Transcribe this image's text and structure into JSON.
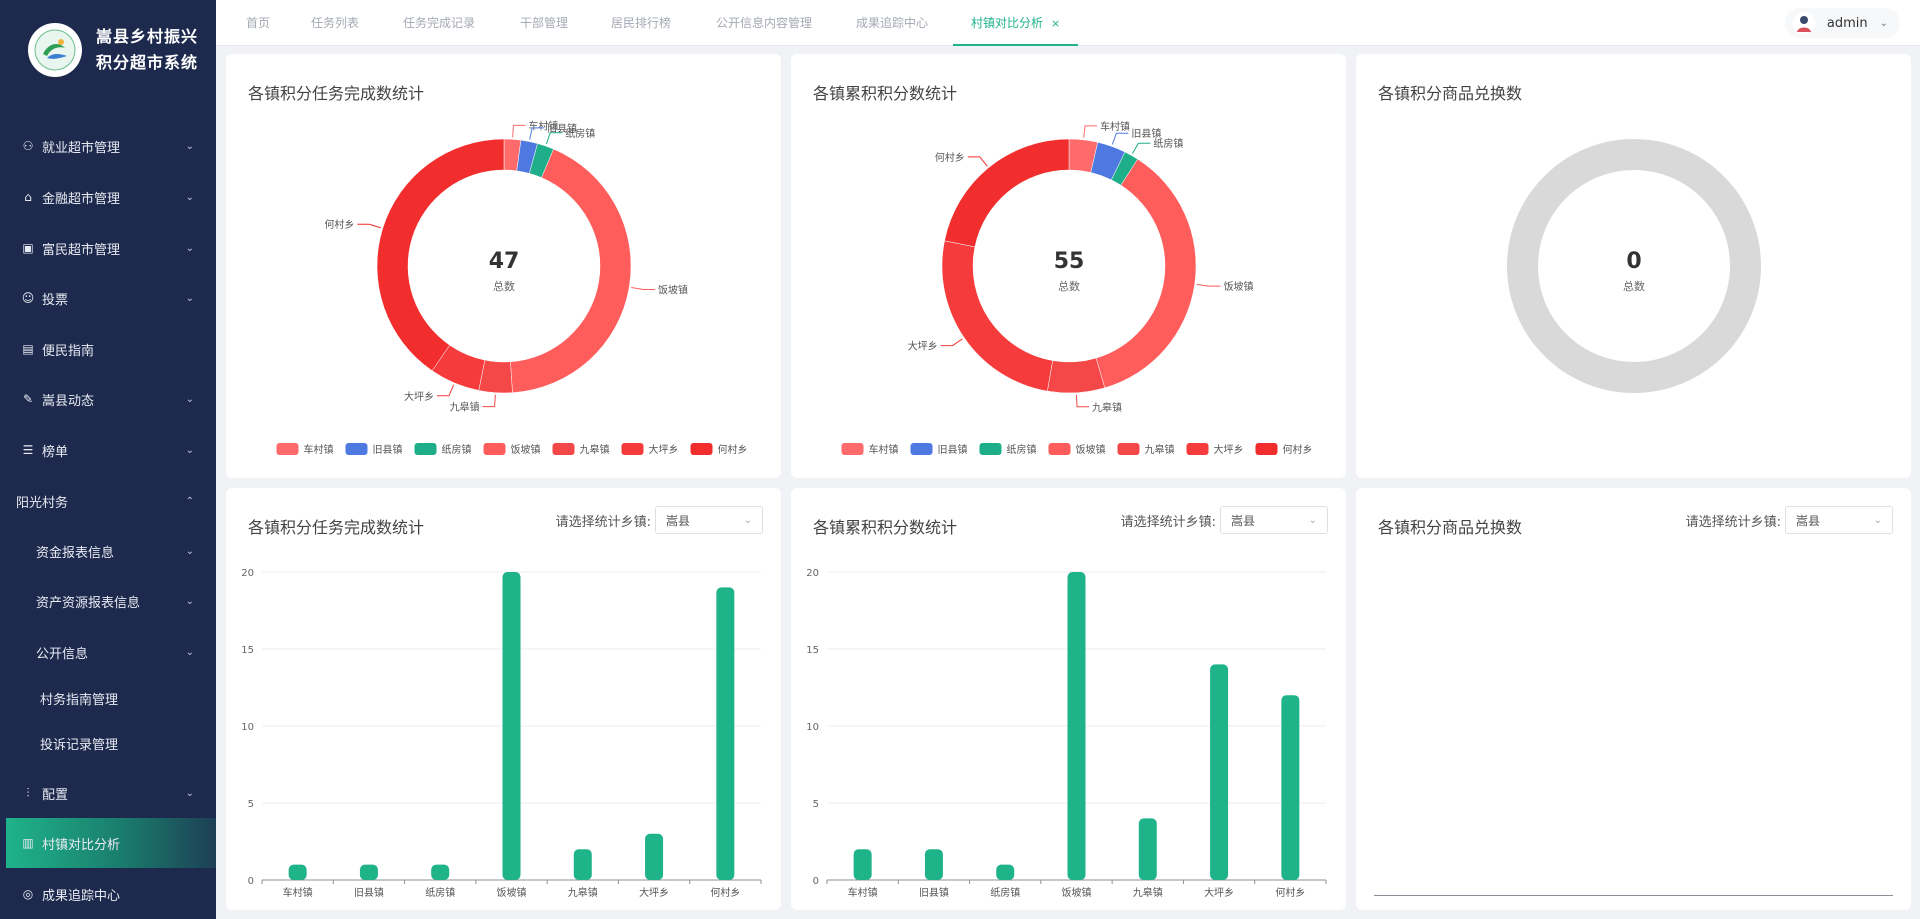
{
  "app": {
    "title_line1": "嵩县乡村振兴",
    "title_line2": "积分超市系统"
  },
  "sidebar": {
    "items": [
      {
        "label": "就业超市管理",
        "icon": "org-chart-icon",
        "arrow": "down"
      },
      {
        "label": "金融超市管理",
        "icon": "bank-icon",
        "arrow": "down"
      },
      {
        "label": "富民超市管理",
        "icon": "shop-icon",
        "arrow": "down"
      },
      {
        "label": "投票",
        "icon": "people-icon",
        "arrow": "down"
      },
      {
        "label": "便民指南",
        "icon": "document-icon",
        "arrow": ""
      },
      {
        "label": "嵩县动态",
        "icon": "pen-icon",
        "arrow": "down"
      },
      {
        "label": "榜单",
        "icon": "list-icon",
        "arrow": "down"
      },
      {
        "label": "阳光村务",
        "icon": "",
        "arrow": "up"
      },
      {
        "label": "资金报表信息",
        "icon": "",
        "arrow": "down"
      },
      {
        "label": "资产资源报表信息",
        "icon": "",
        "arrow": "down"
      },
      {
        "label": "公开信息",
        "icon": "",
        "arrow": "down"
      },
      {
        "label": "村务指南管理",
        "icon": "",
        "arrow": ""
      },
      {
        "label": "投诉记录管理",
        "icon": "",
        "arrow": ""
      },
      {
        "label": "配置",
        "icon": "sliders-icon",
        "arrow": "down"
      },
      {
        "label": "村镇对比分析",
        "icon": "bar-chart-icon",
        "arrow": ""
      },
      {
        "label": "成果追踪中心",
        "icon": "target-icon",
        "arrow": ""
      }
    ]
  },
  "tabs": [
    {
      "label": "首页"
    },
    {
      "label": "任务列表"
    },
    {
      "label": "任务完成记录"
    },
    {
      "label": "干部管理"
    },
    {
      "label": "居民排行榜"
    },
    {
      "label": "公开信息内容管理"
    },
    {
      "label": "成果追踪中心"
    },
    {
      "label": "村镇对比分析",
      "active": true,
      "close": "×"
    }
  ],
  "user": {
    "name": "admin"
  },
  "filter": {
    "label": "请选择统计乡镇:",
    "value": "嵩县"
  },
  "colors": {
    "accent": "#1fb38a",
    "sidebar_bg": "#1d2a4d",
    "bar": "#1fb38a",
    "slices": [
      "#ff6b6b",
      "#4e79e0",
      "#1fae8a",
      "#ff5c5c",
      "#f44848",
      "#f53b3b",
      "#f22d2d"
    ],
    "empty_ring": "#d9d9d9"
  },
  "cards": {
    "pie1": {
      "title": "各镇积分任务完成数统计",
      "center_label": "总数"
    },
    "pie2": {
      "title": "各镇累积积分数统计",
      "center_label": "总数"
    },
    "pie3": {
      "title": "各镇积分商品兑换数",
      "center_label": "总数"
    },
    "bar1": {
      "title": "各镇积分任务完成数统计"
    },
    "bar2": {
      "title": "各镇累积积分数统计"
    },
    "bar3": {
      "title": "各镇积分商品兑换数"
    }
  },
  "chart_data": [
    {
      "type": "pie",
      "title": "各镇积分任务完成数统计",
      "donut": true,
      "total": 47,
      "labels": [
        "车村镇",
        "旧县镇",
        "纸房镇",
        "饭坡镇",
        "九皋镇",
        "大坪乡",
        "何村乡"
      ],
      "values": [
        1,
        1,
        1,
        20,
        2,
        3,
        19
      ],
      "legend": "bottom"
    },
    {
      "type": "pie",
      "title": "各镇累积积分数统计",
      "donut": true,
      "total": 55,
      "labels": [
        "车村镇",
        "旧县镇",
        "纸房镇",
        "饭坡镇",
        "九皋镇",
        "大坪乡",
        "何村乡"
      ],
      "values": [
        2,
        2,
        1,
        20,
        4,
        14,
        12
      ],
      "legend": "bottom"
    },
    {
      "type": "pie",
      "title": "各镇积分商品兑换数",
      "donut": true,
      "total": 0,
      "labels": [],
      "values": []
    },
    {
      "type": "bar",
      "title": "各镇积分任务完成数统计",
      "categories": [
        "车村镇",
        "旧县镇",
        "纸房镇",
        "饭坡镇",
        "九皋镇",
        "大坪乡",
        "何村乡"
      ],
      "values": [
        1,
        1,
        1,
        20,
        2,
        3,
        19
      ],
      "ylim": [
        0,
        20
      ],
      "yticks": [
        0,
        5,
        10,
        15,
        20
      ],
      "grid": true
    },
    {
      "type": "bar",
      "title": "各镇累积积分数统计",
      "categories": [
        "车村镇",
        "旧县镇",
        "纸房镇",
        "饭坡镇",
        "九皋镇",
        "大坪乡",
        "何村乡"
      ],
      "values": [
        2,
        2,
        1,
        20,
        4,
        14,
        12
      ],
      "ylim": [
        0,
        20
      ],
      "yticks": [
        0,
        5,
        10,
        15,
        20
      ],
      "grid": true
    },
    {
      "type": "bar",
      "title": "各镇积分商品兑换数",
      "categories": [],
      "values": []
    }
  ]
}
